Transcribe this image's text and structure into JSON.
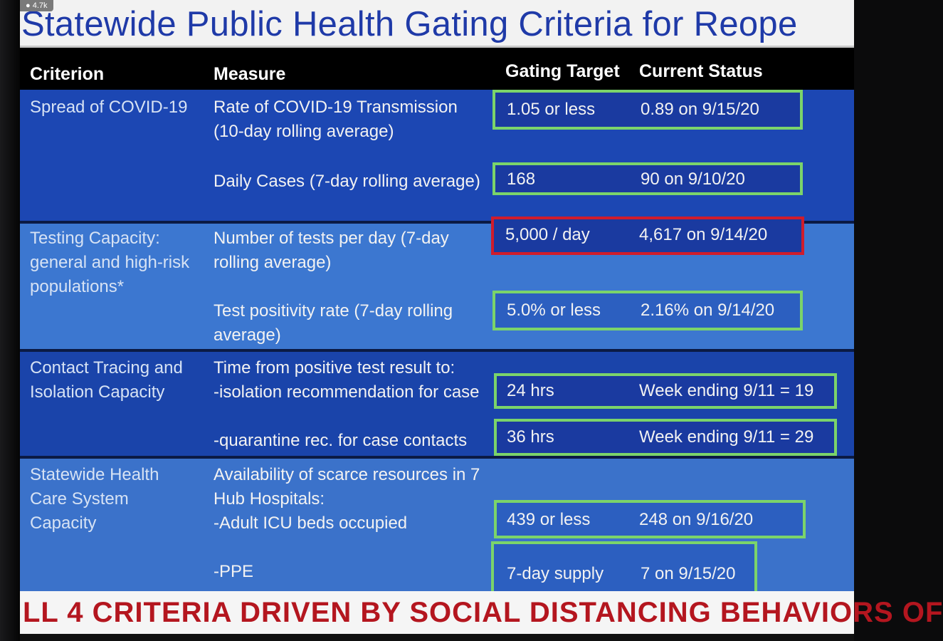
{
  "badge": "● 4.7k",
  "title": "Statewide Public Health Gating Criteria for Reope",
  "headers": {
    "criterion": "Criterion",
    "measure": "Measure",
    "target": "Gating Target",
    "status": "Current Status"
  },
  "rows": [
    {
      "criterion": "Spread of COVID-19",
      "measures": [
        {
          "measure": "Rate of COVID-19 Transmission (10-day rolling average)",
          "target": "1.05 or less",
          "status": "0.89 on 9/15/20",
          "box_color": "green"
        },
        {
          "measure": "Daily Cases (7-day rolling average)",
          "target": "168",
          "status": "90 on 9/10/20",
          "box_color": "green"
        }
      ]
    },
    {
      "criterion": "Testing Capacity: general and high-risk populations*",
      "measures": [
        {
          "measure": "Number of tests per day (7-day rolling average)",
          "target": "5,000 / day",
          "status": "4,617 on 9/14/20",
          "box_color": "red"
        },
        {
          "measure": "Test positivity rate  (7-day rolling average)",
          "target": "5.0% or less",
          "status": "2.16% on 9/14/20",
          "box_color": "green"
        }
      ]
    },
    {
      "criterion": "Contact Tracing and Isolation Capacity",
      "measure_intro": "Time from positive test result to:",
      "measures": [
        {
          "measure": "-isolation recommendation for case",
          "target": "24 hrs",
          "status": "Week ending 9/11 = 19",
          "box_color": "green"
        },
        {
          "measure": "-quarantine rec. for case contacts",
          "target": "36 hrs",
          "status": "Week ending 9/11 = 29",
          "box_color": "green"
        }
      ]
    },
    {
      "criterion": "Statewide Health Care System Capacity",
      "measure_intro": "Availability of scarce resources in 7 Hub Hospitals:",
      "measures": [
        {
          "measure": "-Adult ICU beds occupied",
          "target": "439 or less",
          "status": "248 on 9/16/20",
          "box_color": "green"
        },
        {
          "measure": "-PPE",
          "target": "7-day supply",
          "status": "7 on 9/15/20",
          "box_color": "green"
        }
      ]
    }
  ],
  "footer": "LL 4 CRITERIA DRIVEN BY SOCIAL DISTANCING BEHAVIORS OF",
  "colors": {
    "title_blue": "#1f3aa8",
    "row_dark": "#1c47b3",
    "row_light": "#3c77d0",
    "box_green": "#7bd46a",
    "box_red": "#d01c2c",
    "footer_red": "#b4161f"
  }
}
